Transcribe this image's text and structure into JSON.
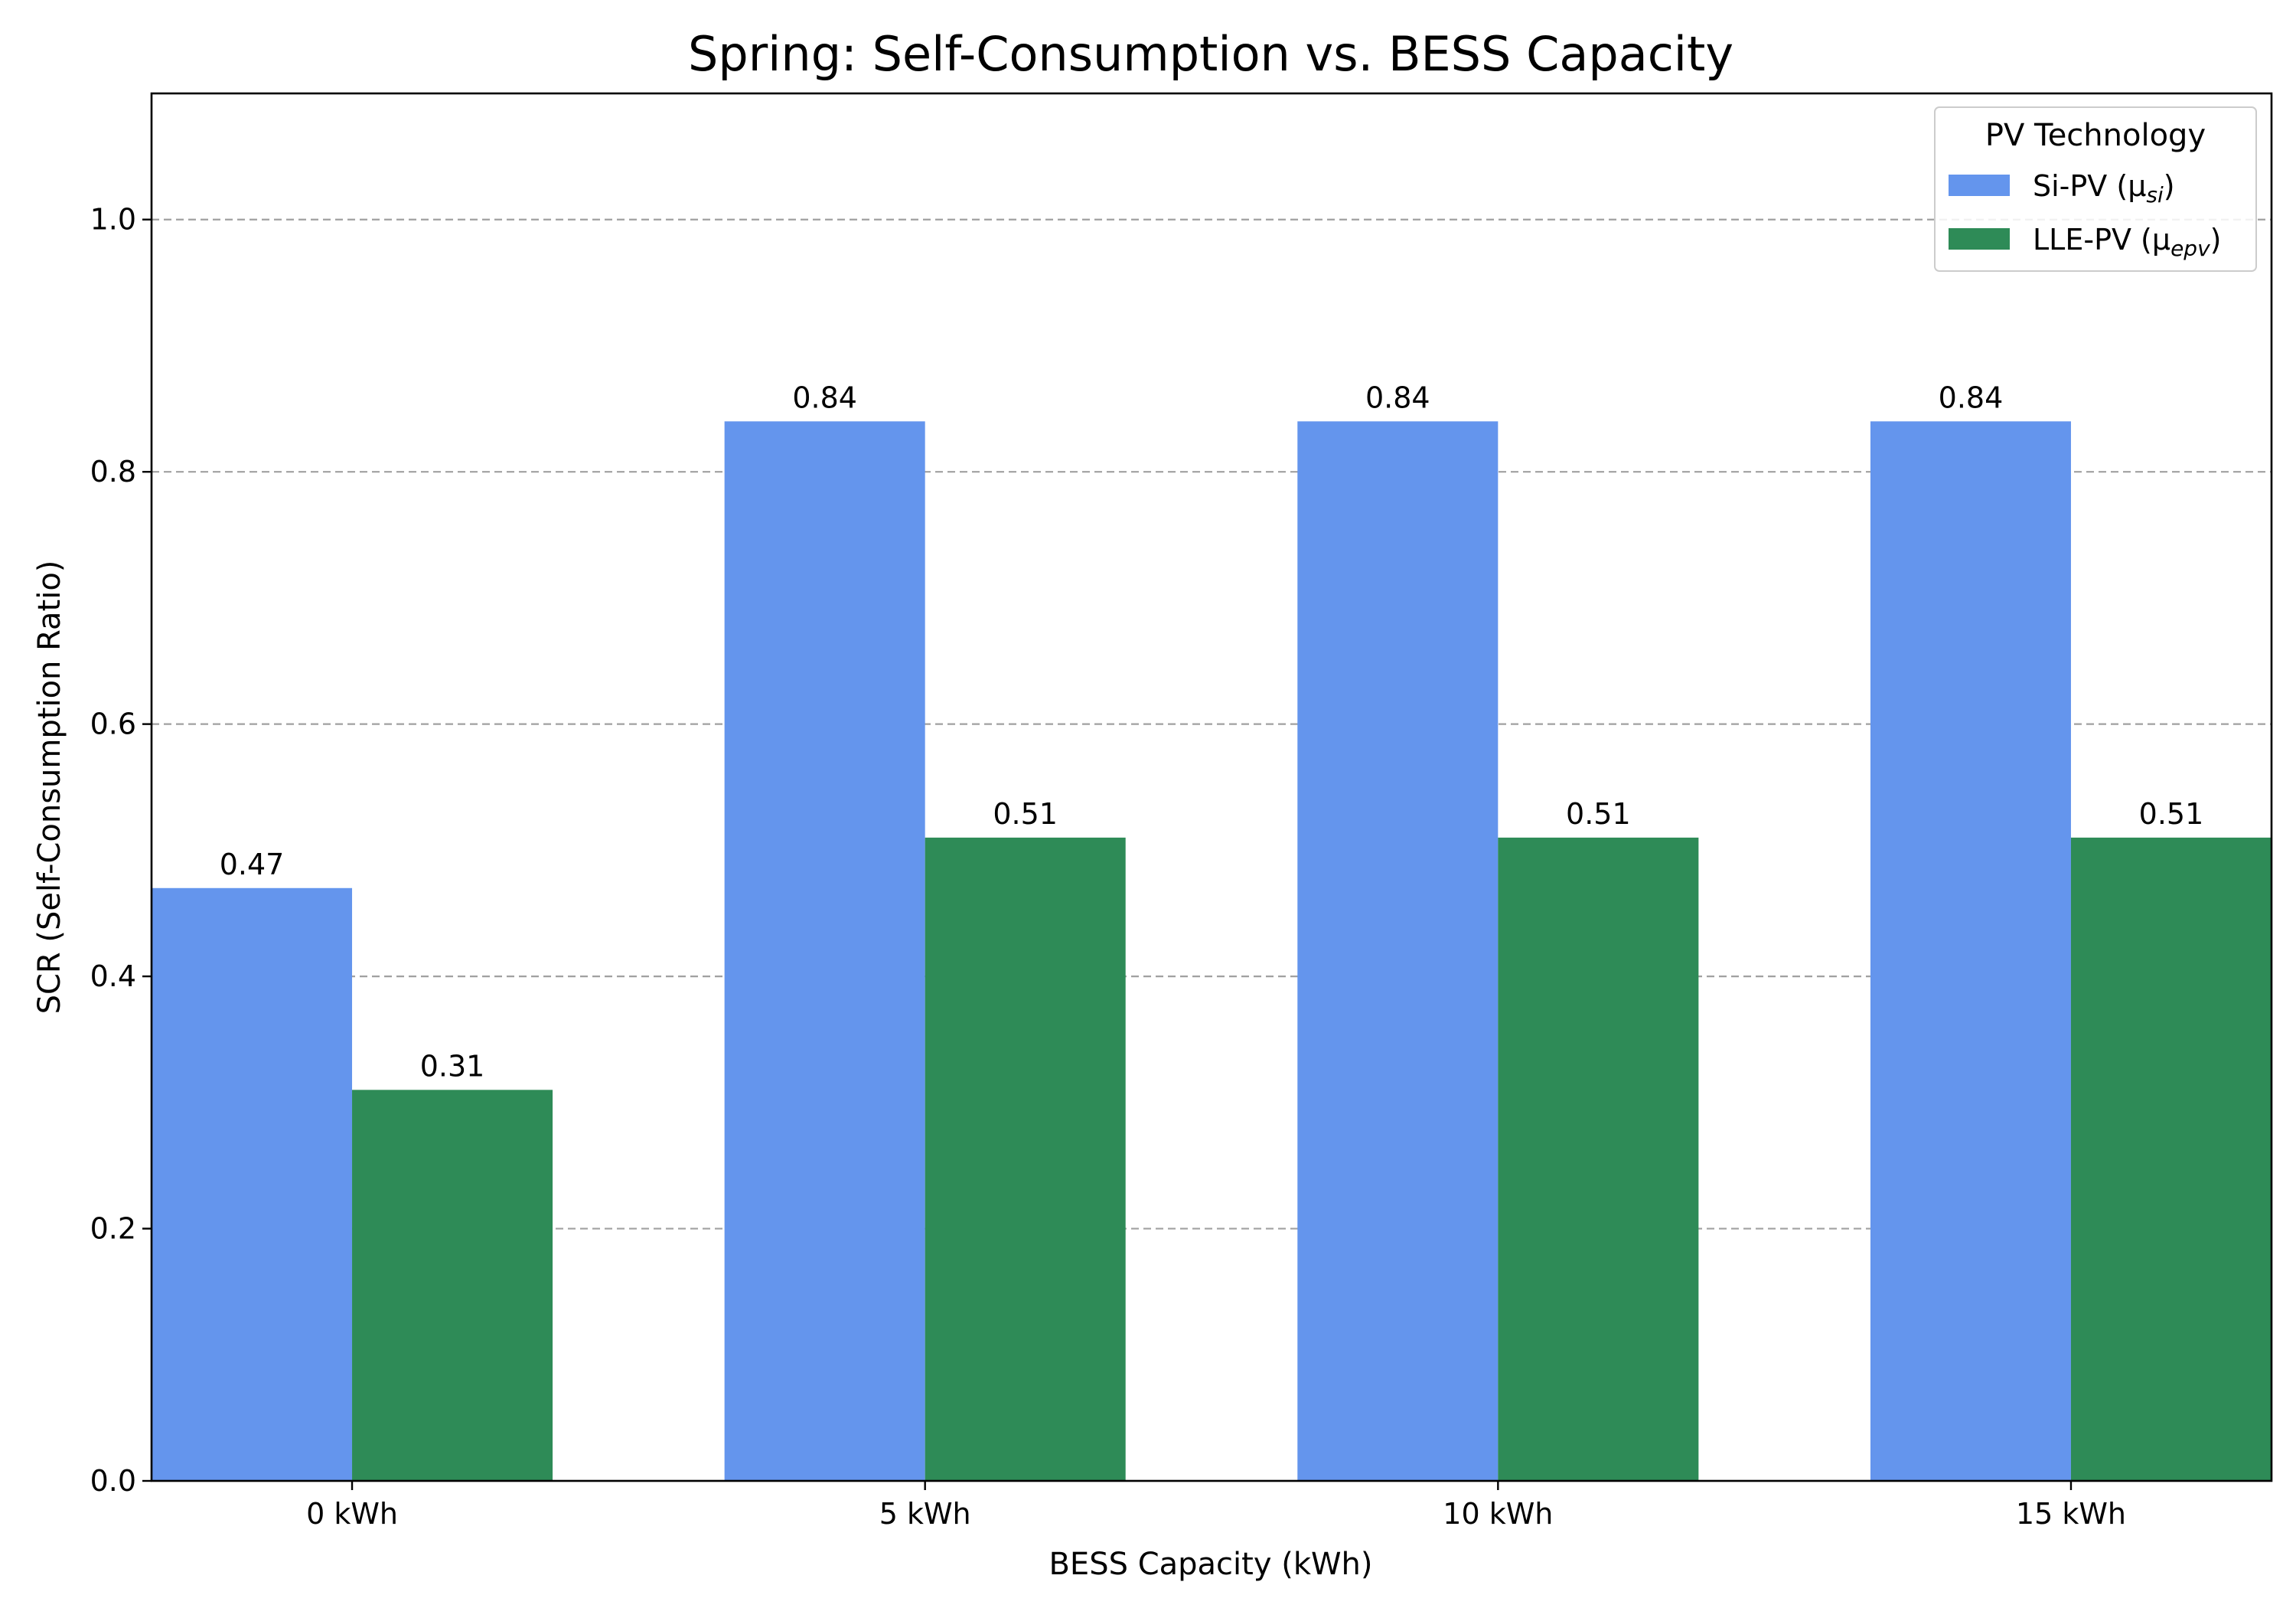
{
  "chart_data": {
    "type": "bar",
    "title": "Spring: Self-Consumption vs. BESS Capacity",
    "xlabel": "BESS Capacity (kWh)",
    "ylabel": "SCR (Self-Consumption Ratio)",
    "categories": [
      "0 kWh",
      "5 kWh",
      "10 kWh",
      "15 kWh"
    ],
    "ylim": [
      0,
      1.1
    ],
    "yticks": [
      0.0,
      0.2,
      0.4,
      0.6,
      0.8,
      1.0
    ],
    "ytick_labels": [
      "0.0",
      "0.2",
      "0.4",
      "0.6",
      "0.8",
      "1.0"
    ],
    "grid": "y-dashed",
    "legend": {
      "title": "PV Technology",
      "placement": "top-right"
    },
    "series": [
      {
        "name": "Si-PV (μ",
        "name_sub": "si",
        "name_close": ")",
        "color": "#6495ED",
        "values": [
          0.47,
          0.84,
          0.84,
          0.84
        ],
        "labels": [
          "0.47",
          "0.84",
          "0.84",
          "0.84"
        ]
      },
      {
        "name": "LLE-PV (μ",
        "name_sub": "epv",
        "name_close": ")",
        "color": "#2E8B57",
        "values": [
          0.31,
          0.51,
          0.51,
          0.51
        ],
        "labels": [
          "0.31",
          "0.51",
          "0.51",
          "0.51"
        ]
      }
    ]
  }
}
